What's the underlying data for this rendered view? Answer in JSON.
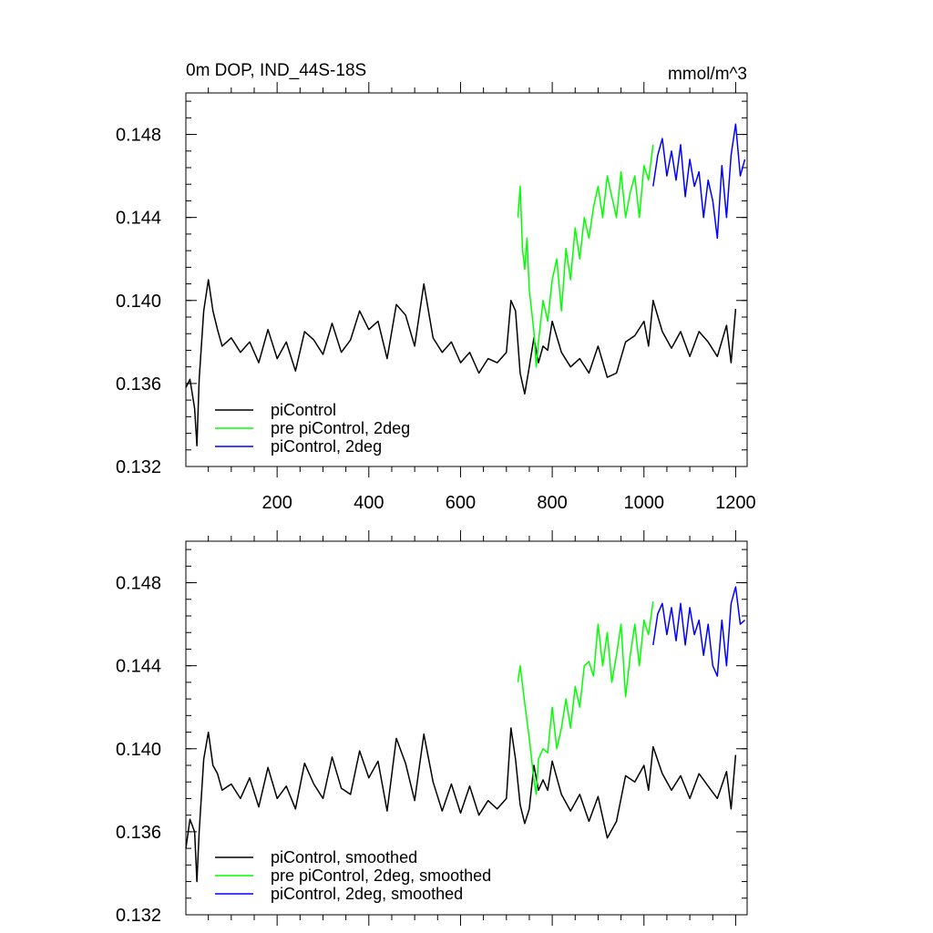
{
  "chart_data": [
    {
      "type": "line",
      "title": "0m DOP, IND_44S-18S",
      "units_label": "mmol/m^3",
      "xlim": [
        1,
        1225
      ],
      "ylim": [
        0.132,
        0.15
      ],
      "x_ticks": [
        200,
        400,
        600,
        800,
        1000,
        1200
      ],
      "x_tick_labels": [
        "200",
        "400",
        "600",
        "800",
        "1000",
        "1200"
      ],
      "y_ticks": [
        0.132,
        0.136,
        0.14,
        0.144,
        0.148
      ],
      "y_tick_labels": [
        "0.132",
        "0.136",
        "0.140",
        "0.144",
        "0.148"
      ],
      "legend_position": "bottom-left",
      "colors": {
        "piControl": "#000000",
        "pre": "#00ff00",
        "pi2deg": "#0000ff"
      },
      "series": [
        {
          "name": "piControl",
          "color": "#000000",
          "x": [
            1,
            10,
            20,
            25,
            30,
            40,
            50,
            60,
            70,
            80,
            100,
            120,
            140,
            160,
            180,
            200,
            220,
            240,
            260,
            280,
            300,
            320,
            340,
            360,
            380,
            400,
            420,
            440,
            460,
            480,
            500,
            520,
            540,
            560,
            580,
            600,
            620,
            640,
            660,
            680,
            700,
            710,
            720,
            730,
            740,
            750,
            760,
            770,
            780,
            790,
            800,
            820,
            840,
            860,
            880,
            900,
            920,
            940,
            960,
            980,
            1000,
            1010,
            1020,
            1040,
            1060,
            1080,
            1100,
            1120,
            1140,
            1160,
            1180,
            1190,
            1200
          ],
          "y": [
            0.1358,
            0.1362,
            0.1348,
            0.133,
            0.1362,
            0.1395,
            0.141,
            0.1395,
            0.1386,
            0.1378,
            0.1382,
            0.1375,
            0.138,
            0.137,
            0.1386,
            0.1372,
            0.138,
            0.1366,
            0.1385,
            0.1381,
            0.1374,
            0.1389,
            0.1375,
            0.1381,
            0.1395,
            0.1386,
            0.139,
            0.1372,
            0.1398,
            0.1393,
            0.1378,
            0.1408,
            0.1382,
            0.1375,
            0.138,
            0.137,
            0.1375,
            0.1365,
            0.1372,
            0.137,
            0.1375,
            0.14,
            0.1395,
            0.1365,
            0.1355,
            0.1368,
            0.1382,
            0.137,
            0.1378,
            0.1376,
            0.139,
            0.1375,
            0.1368,
            0.1372,
            0.1365,
            0.1378,
            0.1363,
            0.1365,
            0.138,
            0.1383,
            0.139,
            0.1378,
            0.14,
            0.1385,
            0.1377,
            0.1385,
            0.1373,
            0.1385,
            0.138,
            0.1373,
            0.1388,
            0.137,
            0.1396
          ]
        },
        {
          "name": "pre piControl, 2deg",
          "color": "#00ff00",
          "x": [
            725,
            730,
            735,
            740,
            745,
            750,
            755,
            760,
            765,
            770,
            780,
            790,
            800,
            810,
            820,
            830,
            840,
            850,
            860,
            870,
            880,
            890,
            900,
            910,
            920,
            930,
            940,
            950,
            960,
            970,
            980,
            990,
            1000,
            1010,
            1020
          ],
          "y": [
            0.144,
            0.1455,
            0.1425,
            0.1415,
            0.143,
            0.1405,
            0.1395,
            0.1385,
            0.1368,
            0.138,
            0.14,
            0.139,
            0.141,
            0.142,
            0.1395,
            0.1425,
            0.141,
            0.1435,
            0.142,
            0.144,
            0.143,
            0.1445,
            0.1455,
            0.144,
            0.146,
            0.145,
            0.144,
            0.1462,
            0.144,
            0.1452,
            0.146,
            0.144,
            0.1465,
            0.1458,
            0.1475
          ]
        },
        {
          "name": "piControl, 2deg",
          "color": "#0000ff",
          "x": [
            1020,
            1030,
            1040,
            1050,
            1060,
            1070,
            1080,
            1090,
            1100,
            1110,
            1120,
            1130,
            1140,
            1150,
            1160,
            1170,
            1180,
            1190,
            1200,
            1210,
            1220
          ],
          "y": [
            0.1455,
            0.147,
            0.1478,
            0.146,
            0.1472,
            0.1458,
            0.1475,
            0.145,
            0.1468,
            0.1455,
            0.1462,
            0.144,
            0.1458,
            0.1448,
            0.143,
            0.1465,
            0.144,
            0.147,
            0.1485,
            0.146,
            0.1468
          ]
        }
      ]
    },
    {
      "type": "line",
      "xlim": [
        1,
        1225
      ],
      "ylim": [
        0.132,
        0.15
      ],
      "x_ticks": [
        200,
        400,
        600,
        800,
        1000,
        1200
      ],
      "y_ticks": [
        0.132,
        0.136,
        0.14,
        0.144,
        0.148
      ],
      "y_tick_labels": [
        "0.132",
        "0.136",
        "0.140",
        "0.144",
        "0.148"
      ],
      "legend_position": "bottom-left",
      "series": [
        {
          "name": "piControl, smoothed",
          "color": "#000000",
          "x": [
            1,
            10,
            20,
            25,
            30,
            40,
            50,
            60,
            70,
            80,
            100,
            120,
            140,
            160,
            180,
            200,
            220,
            240,
            260,
            280,
            300,
            320,
            340,
            360,
            380,
            400,
            420,
            440,
            460,
            480,
            500,
            520,
            540,
            560,
            580,
            600,
            620,
            640,
            660,
            680,
            700,
            710,
            720,
            730,
            740,
            750,
            760,
            770,
            780,
            790,
            800,
            820,
            840,
            860,
            880,
            900,
            920,
            940,
            960,
            980,
            1000,
            1010,
            1020,
            1040,
            1060,
            1080,
            1100,
            1120,
            1140,
            1160,
            1180,
            1190,
            1200
          ],
          "y": [
            0.1352,
            0.1366,
            0.136,
            0.1336,
            0.136,
            0.1395,
            0.1408,
            0.1392,
            0.1388,
            0.138,
            0.1383,
            0.1376,
            0.1386,
            0.1372,
            0.1391,
            0.1376,
            0.1382,
            0.1371,
            0.1393,
            0.1383,
            0.1376,
            0.1396,
            0.1381,
            0.1378,
            0.1399,
            0.1386,
            0.1394,
            0.137,
            0.1405,
            0.1393,
            0.1375,
            0.1407,
            0.1384,
            0.137,
            0.1383,
            0.1369,
            0.1382,
            0.1368,
            0.1375,
            0.1371,
            0.1376,
            0.141,
            0.1395,
            0.1373,
            0.1364,
            0.1371,
            0.1392,
            0.138,
            0.1385,
            0.138,
            0.1394,
            0.1378,
            0.137,
            0.1378,
            0.1365,
            0.1377,
            0.1357,
            0.1365,
            0.1387,
            0.1384,
            0.1392,
            0.138,
            0.1401,
            0.1388,
            0.138,
            0.1387,
            0.1376,
            0.1388,
            0.1382,
            0.1376,
            0.1389,
            0.1371,
            0.1397
          ]
        },
        {
          "name": "pre piControl, 2deg, smoothed",
          "color": "#00ff00",
          "x": [
            725,
            730,
            740,
            750,
            760,
            765,
            770,
            780,
            790,
            800,
            810,
            820,
            830,
            840,
            850,
            860,
            870,
            880,
            890,
            900,
            910,
            920,
            930,
            940,
            950,
            960,
            970,
            980,
            990,
            1000,
            1010,
            1020
          ],
          "y": [
            0.1432,
            0.144,
            0.1422,
            0.1405,
            0.1385,
            0.1378,
            0.1395,
            0.14,
            0.1398,
            0.142,
            0.14,
            0.141,
            0.1424,
            0.141,
            0.143,
            0.142,
            0.144,
            0.1442,
            0.1435,
            0.146,
            0.144,
            0.1456,
            0.1432,
            0.1445,
            0.146,
            0.1425,
            0.1445,
            0.146,
            0.144,
            0.1462,
            0.1455,
            0.1471
          ]
        },
        {
          "name": "piControl, 2deg, smoothed",
          "color": "#0000ff",
          "x": [
            1020,
            1030,
            1040,
            1050,
            1060,
            1070,
            1080,
            1090,
            1100,
            1110,
            1120,
            1130,
            1140,
            1150,
            1160,
            1170,
            1180,
            1190,
            1200,
            1210,
            1220
          ],
          "y": [
            0.145,
            0.1465,
            0.147,
            0.1455,
            0.1468,
            0.1452,
            0.147,
            0.145,
            0.1468,
            0.1455,
            0.1462,
            0.1445,
            0.146,
            0.144,
            0.1435,
            0.1462,
            0.144,
            0.147,
            0.1478,
            0.146,
            0.1462
          ]
        }
      ]
    }
  ]
}
